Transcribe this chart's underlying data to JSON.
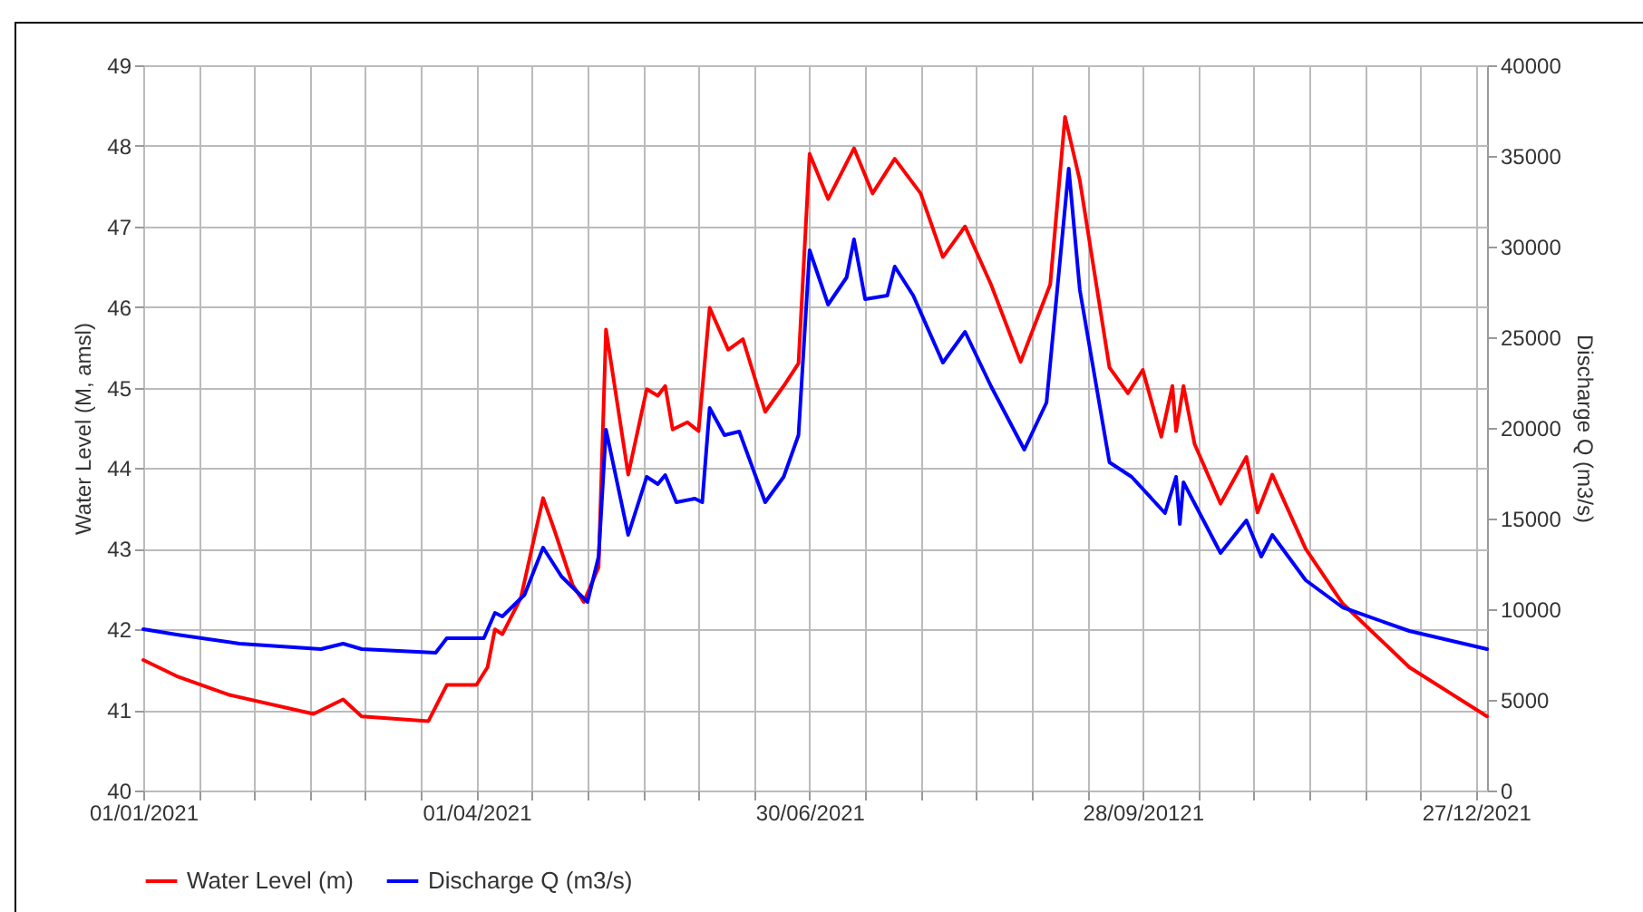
{
  "chart_data": {
    "type": "line",
    "ylabel": "Water Level (M, amsl)",
    "y2label": "Discharge Q (m3/s)",
    "xlim": [
      "2021-01-01",
      "2021-12-30"
    ],
    "xticks": [
      {
        "value": "2021-01-01",
        "label": "01/01/2021"
      },
      {
        "value": "2021-01-16",
        "label": null
      },
      {
        "value": "2021-01-31",
        "label": null
      },
      {
        "value": "2021-02-15",
        "label": null
      },
      {
        "value": "2021-03-02",
        "label": null
      },
      {
        "value": "2021-03-17",
        "label": null
      },
      {
        "value": "2021-04-01",
        "label": "01/04/2021"
      },
      {
        "value": "2021-04-16",
        "label": null
      },
      {
        "value": "2021-05-01",
        "label": null
      },
      {
        "value": "2021-05-16",
        "label": null
      },
      {
        "value": "2021-05-31",
        "label": null
      },
      {
        "value": "2021-06-15",
        "label": null
      },
      {
        "value": "2021-06-30",
        "label": "30/06/2021"
      },
      {
        "value": "2021-07-15",
        "label": null
      },
      {
        "value": "2021-07-30",
        "label": null
      },
      {
        "value": "2021-08-14",
        "label": null
      },
      {
        "value": "2021-08-29",
        "label": null
      },
      {
        "value": "2021-09-13",
        "label": null
      },
      {
        "value": "2021-09-28",
        "label": "28/09/20121"
      },
      {
        "value": "2021-10-13",
        "label": null
      },
      {
        "value": "2021-10-28",
        "label": null
      },
      {
        "value": "2021-11-12",
        "label": null
      },
      {
        "value": "2021-11-27",
        "label": null
      },
      {
        "value": "2021-12-12",
        "label": null
      },
      {
        "value": "2021-12-27",
        "label": "27/12/2021"
      }
    ],
    "ylim": [
      40,
      49
    ],
    "yticks": [
      40,
      41,
      42,
      43,
      44,
      45,
      46,
      47,
      48,
      49
    ],
    "y2lim": [
      0,
      40000
    ],
    "y2ticks": [
      0,
      5000,
      10000,
      15000,
      20000,
      25000,
      30000,
      35000,
      40000
    ],
    "grid": true,
    "legend": "bottom",
    "series": [
      {
        "name": "Water Level (m)",
        "color": "#ff0000",
        "x": [
          "2021-01-01",
          "2021-01-10",
          "2021-01-24",
          "2021-02-16",
          "2021-02-24",
          "2021-03-01",
          "2021-03-19",
          "2021-03-24",
          "2021-04-01",
          "2021-04-04",
          "2021-04-06",
          "2021-04-08",
          "2021-04-13",
          "2021-04-19",
          "2021-04-22",
          "2021-04-27",
          "2021-04-30",
          "2021-05-04",
          "2021-05-06",
          "2021-05-12",
          "2021-05-17",
          "2021-05-20",
          "2021-05-22",
          "2021-05-24",
          "2021-05-28",
          "2021-05-31",
          "2021-06-03",
          "2021-06-08",
          "2021-06-12",
          "2021-06-18",
          "2021-06-23",
          "2021-06-27",
          "2021-06-30",
          "2021-07-05",
          "2021-07-12",
          "2021-07-17",
          "2021-07-23",
          "2021-07-30",
          "2021-08-05",
          "2021-08-11",
          "2021-08-18",
          "2021-08-26",
          "2021-08-31",
          "2021-09-03",
          "2021-09-07",
          "2021-09-11",
          "2021-09-19",
          "2021-09-24",
          "2021-09-28",
          "2021-10-03",
          "2021-10-06",
          "2021-10-07",
          "2021-10-09",
          "2021-10-12",
          "2021-10-19",
          "2021-10-26",
          "2021-10-29",
          "2021-11-02",
          "2021-11-11",
          "2021-11-21",
          "2021-12-09",
          "2021-12-30"
        ],
        "values": [
          41.62,
          41.42,
          41.19,
          40.95,
          41.13,
          40.92,
          40.86,
          41.31,
          41.31,
          41.53,
          42.0,
          41.94,
          42.39,
          43.63,
          43.24,
          42.55,
          42.34,
          42.77,
          45.72,
          43.92,
          44.98,
          44.9,
          45.02,
          44.48,
          44.57,
          44.46,
          45.99,
          45.47,
          45.6,
          44.7,
          45.02,
          45.3,
          47.9,
          47.34,
          47.97,
          47.41,
          47.84,
          47.41,
          46.62,
          47.0,
          46.28,
          45.32,
          45.92,
          46.28,
          48.36,
          47.57,
          45.25,
          44.93,
          45.22,
          44.39,
          45.02,
          44.46,
          45.02,
          44.3,
          43.56,
          44.14,
          43.45,
          43.92,
          43.0,
          42.32,
          41.53,
          40.92
        ]
      },
      {
        "name": "Discharge Q (m3/s)",
        "color": "#0000ff",
        "axis": "y2",
        "x": [
          "2021-01-01",
          "2021-01-10",
          "2021-01-27",
          "2021-02-18",
          "2021-02-24",
          "2021-03-01",
          "2021-03-21",
          "2021-03-24",
          "2021-04-03",
          "2021-04-06",
          "2021-04-08",
          "2021-04-14",
          "2021-04-19",
          "2021-04-24",
          "2021-05-01",
          "2021-05-04",
          "2021-05-06",
          "2021-05-12",
          "2021-05-17",
          "2021-05-20",
          "2021-05-22",
          "2021-05-25",
          "2021-05-30",
          "2021-06-01",
          "2021-06-03",
          "2021-06-07",
          "2021-06-11",
          "2021-06-18",
          "2021-06-23",
          "2021-06-27",
          "2021-06-30",
          "2021-07-05",
          "2021-07-10",
          "2021-07-12",
          "2021-07-15",
          "2021-07-21",
          "2021-07-23",
          "2021-07-28",
          "2021-08-05",
          "2021-08-11",
          "2021-08-18",
          "2021-08-27",
          "2021-09-02",
          "2021-09-08",
          "2021-09-11",
          "2021-09-19",
          "2021-09-25",
          "2021-10-04",
          "2021-10-07",
          "2021-10-08",
          "2021-10-09",
          "2021-10-19",
          "2021-10-26",
          "2021-10-30",
          "2021-11-02",
          "2021-11-11",
          "2021-11-21",
          "2021-12-09",
          "2021-12-30"
        ],
        "values": [
          8900,
          8600,
          8100,
          7800,
          8100,
          7800,
          7600,
          8400,
          8400,
          9800,
          9600,
          10800,
          13400,
          11800,
          10400,
          12900,
          19900,
          14100,
          17300,
          16900,
          17400,
          15900,
          16100,
          15900,
          21100,
          19600,
          19800,
          15900,
          17300,
          19600,
          29800,
          26800,
          28300,
          30400,
          27100,
          27300,
          28900,
          27300,
          23600,
          25300,
          22300,
          18800,
          21400,
          34300,
          27600,
          18100,
          17300,
          15300,
          17300,
          14700,
          17000,
          13100,
          14900,
          12900,
          14100,
          11600,
          10100,
          8800,
          7800
        ]
      }
    ]
  }
}
